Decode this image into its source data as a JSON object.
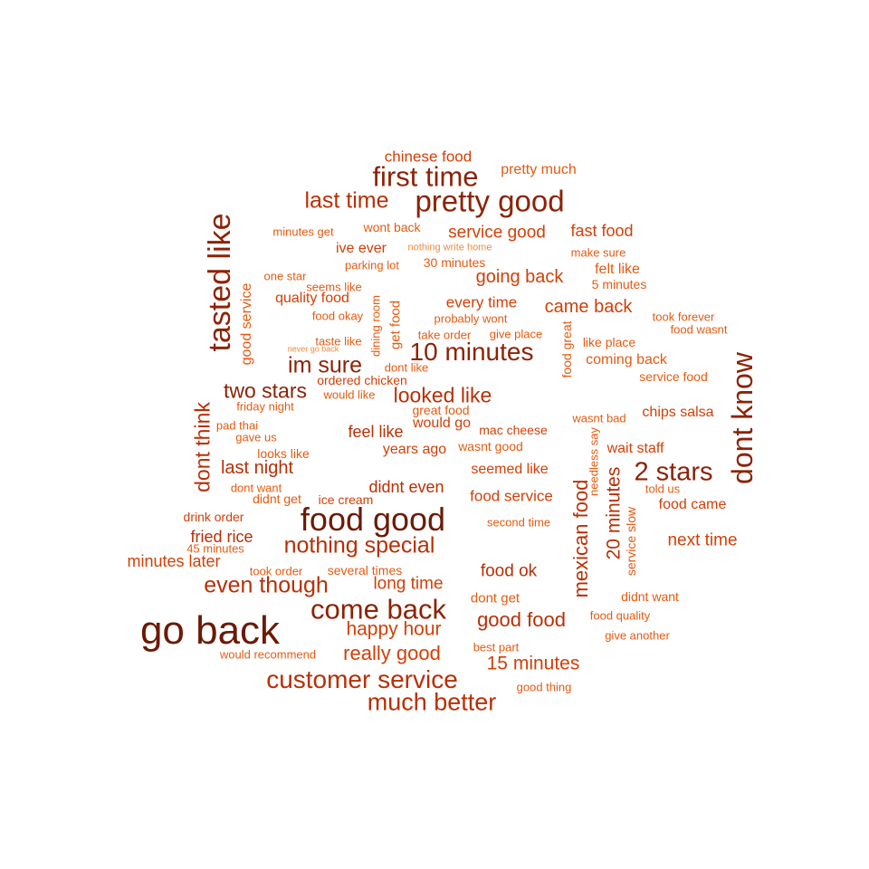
{
  "colors": {
    "background": "#ffffff",
    "tier1": "#6b1a06",
    "tier2": "#8c2306",
    "tier3": "#b82f05",
    "tier4": "#d23f07",
    "tier5": "#e55a10",
    "tier6": "#f08a3c"
  },
  "words": [
    "go back",
    "food good",
    "pretty good",
    "first time",
    "tasted like",
    "dont know",
    "come back",
    "customer service",
    "much better",
    "2 stars",
    "10 minutes",
    "nothing special",
    "last time",
    "even though",
    "im sure",
    "looked like",
    "two stars",
    "dont think",
    "good food",
    "happy hour",
    "really good",
    "15 minutes",
    "mexican food",
    "20 minutes",
    "last night",
    "next time",
    "service good",
    "going back",
    "came back",
    "food service",
    "food ok",
    "long time",
    "fast food",
    "chinese food",
    "pretty much",
    "feel like",
    "would go",
    "didnt even",
    "seemed like",
    "years ago",
    "fried rice",
    "minutes later",
    "food came",
    "chips salsa",
    "wait staff",
    "coming back",
    "quality food",
    "good service",
    "ice cream",
    "mac cheese",
    "every time",
    "get food",
    "dining room",
    "service slow",
    "didnt want",
    "food great",
    "needless say",
    "wont back",
    "ive ever",
    "30 minutes",
    "felt like",
    "5 minutes",
    "took forever",
    "food wasnt",
    "like place",
    "service food",
    "wasnt bad",
    "told us",
    "dont get",
    "best part",
    "food quality",
    "give another",
    "good thing",
    "drink order",
    "didnt get",
    "dont want",
    "looks like",
    "gave us",
    "pad thai",
    "friday night",
    "would like",
    "ordered chicken",
    "great food",
    "wasnt good",
    "give place",
    "take order",
    "probably wont",
    "taste like",
    "food okay",
    "seems like",
    "one star",
    "parking lot",
    "minutes get",
    "nothing write home",
    "make sure",
    "dont like",
    "second time",
    "took order",
    "several times",
    "would recommend",
    "45 minutes",
    "never go back"
  ]
}
